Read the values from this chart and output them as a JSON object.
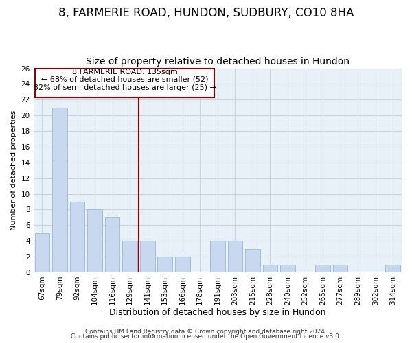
{
  "title": "8, FARMERIE ROAD, HUNDON, SUDBURY, CO10 8HA",
  "subtitle": "Size of property relative to detached houses in Hundon",
  "xlabel": "Distribution of detached houses by size in Hundon",
  "ylabel": "Number of detached properties",
  "categories": [
    "67sqm",
    "79sqm",
    "92sqm",
    "104sqm",
    "116sqm",
    "129sqm",
    "141sqm",
    "153sqm",
    "166sqm",
    "178sqm",
    "191sqm",
    "203sqm",
    "215sqm",
    "228sqm",
    "240sqm",
    "252sqm",
    "265sqm",
    "277sqm",
    "289sqm",
    "302sqm",
    "314sqm"
  ],
  "values": [
    5,
    21,
    9,
    8,
    7,
    4,
    4,
    2,
    2,
    0,
    4,
    4,
    3,
    1,
    1,
    0,
    1,
    1,
    0,
    0,
    1
  ],
  "bar_color": "#c8d8ee",
  "bar_edgecolor": "#9ab8d8",
  "ylim": [
    0,
    26
  ],
  "yticks": [
    0,
    2,
    4,
    6,
    8,
    10,
    12,
    14,
    16,
    18,
    20,
    22,
    24,
    26
  ],
  "vline_x_index": 5.5,
  "vline_color": "#8b0000",
  "annotation_title": "8 FARMERIE ROAD: 135sqm",
  "annotation_line1": "← 68% of detached houses are smaller (52)",
  "annotation_line2": "32% of semi-detached houses are larger (25) →",
  "footer1": "Contains HM Land Registry data © Crown copyright and database right 2024.",
  "footer2": "Contains public sector information licensed under the Open Government Licence v3.0.",
  "bg_color": "#e8f0f8",
  "grid_color": "#c8d4e0",
  "title_fontsize": 12,
  "subtitle_fontsize": 10,
  "xlabel_fontsize": 9,
  "ylabel_fontsize": 8,
  "tick_fontsize": 7.5,
  "annotation_fontsize": 8,
  "footer_fontsize": 6.5
}
